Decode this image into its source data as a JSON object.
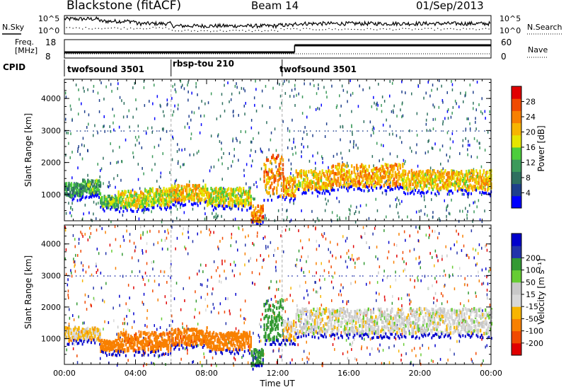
{
  "header": {
    "radar": "Blackstone (fitACF)",
    "beam": "Beam 14",
    "date": "01/Sep/2013"
  },
  "nsky_panel": {
    "left_label": "N.Sky",
    "right_label": "N.Search",
    "left_ticks": [
      "10^5",
      "10^0"
    ],
    "right_ticks": [
      "10^5",
      "10^0"
    ]
  },
  "freq_panel": {
    "left_label_line1": "Freq.",
    "left_label_line2": "[MHz]",
    "left_ticks": [
      "18",
      "8"
    ],
    "right_label": "Nave",
    "right_ticks": [
      "60",
      "0"
    ]
  },
  "cpid": {
    "label": "CPID",
    "segments": [
      {
        "name": "twofsound 3501",
        "start_hour": 0,
        "end_hour": 6
      },
      {
        "name": "rbsp-tou 210",
        "start_hour": 6,
        "end_hour": 12.25
      },
      {
        "name": "twofsound 3501",
        "start_hour": 12.25,
        "end_hour": 24
      }
    ]
  },
  "colors": {
    "power_scale": [
      "#0000ff",
      "#1e3f8c",
      "#2e6f5f",
      "#3c9a5b",
      "#4ccd3c",
      "#e5e500",
      "#f7b500",
      "#f88000",
      "#f04a00",
      "#e00000"
    ],
    "velocity_scale": [
      "#e00000",
      "#f04a00",
      "#f88000",
      "#f7b500",
      "#d8d8d8",
      "#c8c8c8",
      "#66cc33",
      "#339933",
      "#2233aa",
      "#0000cc"
    ]
  },
  "chart_data": [
    {
      "type": "heatmap",
      "panel": "power",
      "ylabel": "Slant Range [km]",
      "ylim": [
        180,
        4600
      ],
      "yticks": [
        1000,
        2000,
        3000,
        4000
      ],
      "colorbar_label": "Power [dB]",
      "colorbar_ticks": [
        4,
        8,
        12,
        16,
        20,
        24,
        28
      ],
      "colorbar_range": [
        0,
        32
      ],
      "xlim": [
        0,
        24
      ],
      "bands": [
        {
          "t": [
            0.0,
            1.0
          ],
          "r": [
            1000,
            1400
          ],
          "level": 10
        },
        {
          "t": [
            1.0,
            2.0
          ],
          "r": [
            1050,
            1500
          ],
          "level": 12
        },
        {
          "t": [
            2.0,
            3.0
          ],
          "r": [
            650,
            1000
          ],
          "level": 14
        },
        {
          "t": [
            3.0,
            4.5
          ],
          "r": [
            650,
            1150
          ],
          "level": 18
        },
        {
          "t": [
            4.5,
            6.0
          ],
          "r": [
            700,
            1250
          ],
          "level": 18
        },
        {
          "t": [
            6.0,
            8.0
          ],
          "r": [
            850,
            1350
          ],
          "level": 20
        },
        {
          "t": [
            8.0,
            10.5
          ],
          "r": [
            700,
            1250
          ],
          "level": 18
        },
        {
          "t": [
            10.5,
            11.2
          ],
          "r": [
            200,
            700
          ],
          "level": 24
        },
        {
          "t": [
            11.2,
            12.3
          ],
          "r": [
            1000,
            2300
          ],
          "level": 24
        },
        {
          "t": [
            12.3,
            13.0
          ],
          "r": [
            1000,
            1600
          ],
          "level": 22
        },
        {
          "t": [
            13.0,
            15.0
          ],
          "r": [
            1200,
            1800
          ],
          "level": 20
        },
        {
          "t": [
            15.0,
            19.0
          ],
          "r": [
            1300,
            2000
          ],
          "level": 22
        },
        {
          "t": [
            19.0,
            24.0
          ],
          "r": [
            1200,
            1800
          ],
          "level": 20
        }
      ]
    },
    {
      "type": "heatmap",
      "panel": "velocity",
      "ylabel": "Slant Range [km]",
      "xlabel": "Time UT",
      "ylim": [
        180,
        4600
      ],
      "yticks": [
        1000,
        2000,
        3000,
        4000
      ],
      "xticks": [
        "00:00",
        "04:00",
        "08:00",
        "12:00",
        "16:00",
        "20:00",
        "00:00"
      ],
      "xtick_hours": [
        0,
        4,
        8,
        12,
        16,
        20,
        24
      ],
      "colorbar_label": "Velocity [m s⁻¹]",
      "colorbar_ticks": [
        -200,
        -100,
        -50,
        -15,
        15,
        50,
        100,
        200
      ],
      "xlim": [
        0,
        24
      ],
      "bands": [
        {
          "t": [
            0.0,
            2.0
          ],
          "r": [
            1000,
            1400
          ],
          "vel": -15
        },
        {
          "t": [
            2.0,
            3.0
          ],
          "r": [
            650,
            1000
          ],
          "vel": -50
        },
        {
          "t": [
            3.0,
            6.0
          ],
          "r": [
            650,
            1250
          ],
          "vel": -60
        },
        {
          "t": [
            6.0,
            8.0
          ],
          "r": [
            850,
            1350
          ],
          "vel": -60
        },
        {
          "t": [
            8.0,
            10.5
          ],
          "r": [
            700,
            1250
          ],
          "vel": -55
        },
        {
          "t": [
            10.5,
            11.2
          ],
          "r": [
            200,
            700
          ],
          "vel": 60
        },
        {
          "t": [
            11.2,
            12.3
          ],
          "r": [
            1000,
            2300
          ],
          "vel": 50
        },
        {
          "t": [
            12.3,
            13.0
          ],
          "r": [
            1000,
            1600
          ],
          "vel": -20
        },
        {
          "t": [
            13.0,
            24.0
          ],
          "r": [
            1200,
            2000
          ],
          "vel": 0
        }
      ]
    }
  ]
}
